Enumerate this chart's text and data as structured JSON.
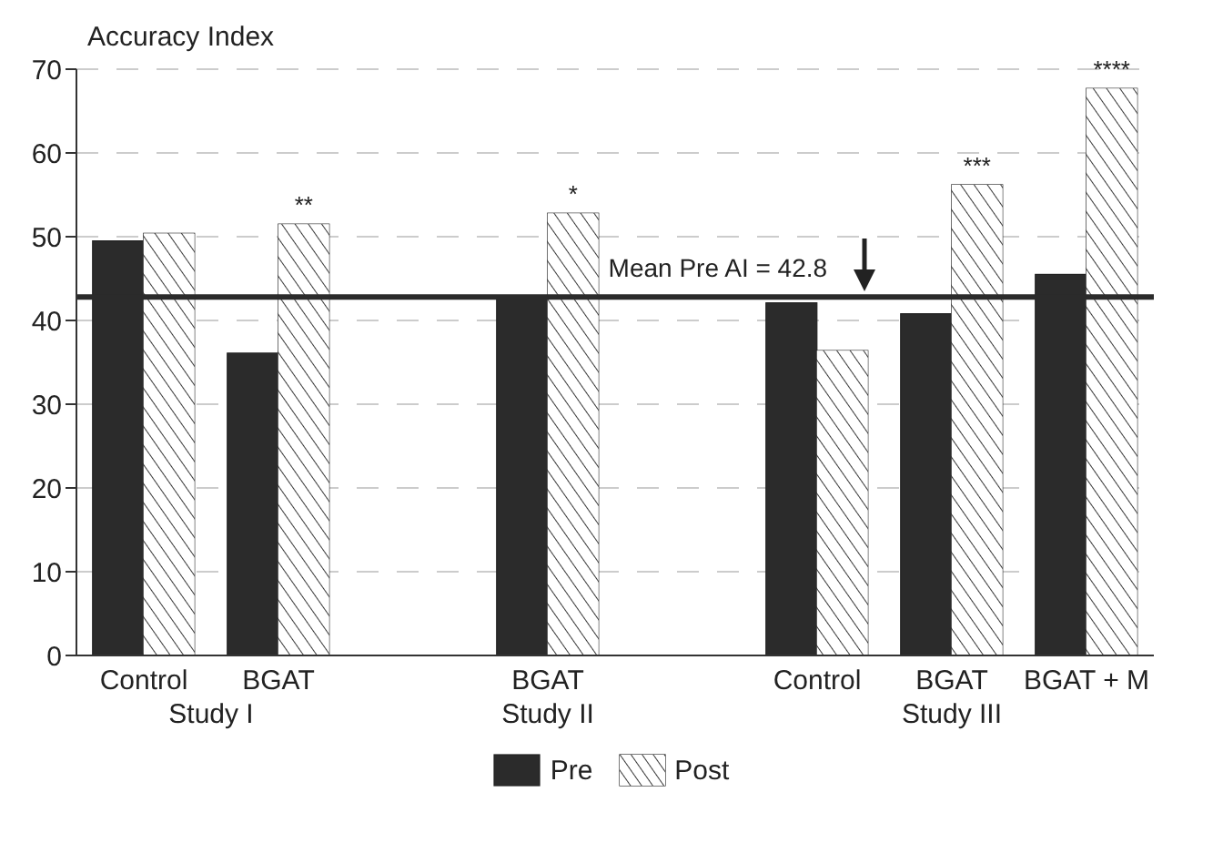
{
  "chart_data": {
    "type": "bar",
    "ylabel": "Accuracy Index",
    "categories": [
      "Control",
      "BGAT",
      null,
      "BGAT",
      null,
      "Control",
      "BGAT",
      "BGAT + M"
    ],
    "series": [
      {
        "name": "Pre",
        "color": "#2b2b2b",
        "values": [
          49.5,
          36.1,
          null,
          42.6,
          null,
          42.1,
          40.8,
          45.5
        ]
      },
      {
        "name": "Post",
        "color": "#ffffff",
        "values": [
          50.4,
          51.5,
          null,
          52.8,
          null,
          36.4,
          56.2,
          67.7
        ],
        "value_labels": [
          null,
          "**",
          null,
          "*",
          null,
          null,
          "***",
          "****"
        ]
      }
    ],
    "ylim": [
      0,
      70
    ],
    "yticks": [
      0,
      10,
      20,
      30,
      40,
      50,
      60,
      70
    ],
    "grid": "y",
    "legend": "bottom",
    "ref_lines": [
      {
        "axis": "y",
        "value": 42.8,
        "label": "Mean Pre AI = 42.8",
        "color": "#2b2b2b"
      }
    ],
    "annotations": [
      "Study I",
      "Study II",
      "Study III"
    ]
  }
}
